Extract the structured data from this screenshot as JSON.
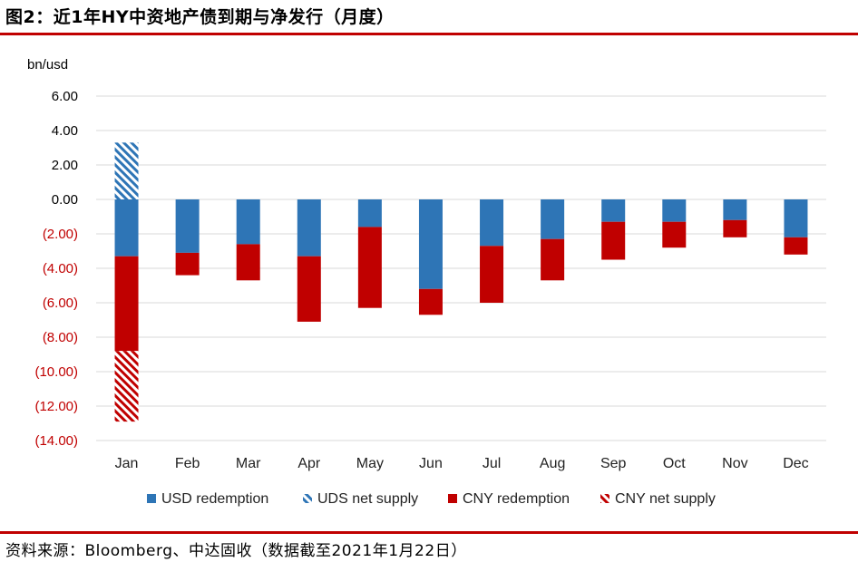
{
  "header": {
    "title": "图2：近1年HY中资地产债到期与净发行（月度）"
  },
  "footer": {
    "source": "资料来源：Bloomberg、中达固收（数据截至2021年1月22日）"
  },
  "colors": {
    "blue": "#2e75b6",
    "red": "#c00000",
    "accent_rule": "#c00000",
    "negative_tick": "#c00000"
  },
  "chart_data": {
    "type": "bar",
    "stacked": true,
    "unit_label": "bn/usd",
    "categories": [
      "Jan",
      "Feb",
      "Mar",
      "Apr",
      "May",
      "Jun",
      "Jul",
      "Aug",
      "Sep",
      "Oct",
      "Nov",
      "Dec"
    ],
    "series": [
      {
        "name": "USD redemption",
        "fill": "solid",
        "color": "#2e75b6",
        "values": [
          -3.3,
          -3.1,
          -2.6,
          -3.3,
          -1.6,
          -5.2,
          -2.7,
          -2.3,
          -1.3,
          -1.3,
          -1.2,
          -2.2
        ]
      },
      {
        "name": "UDS net supply",
        "fill": "hatch",
        "color": "#2e75b6",
        "values": [
          3.3,
          0,
          0,
          0,
          0,
          0,
          0,
          0,
          0,
          0,
          0,
          0
        ]
      },
      {
        "name": "CNY redemption",
        "fill": "solid",
        "color": "#c00000",
        "values": [
          -5.5,
          -1.3,
          -2.1,
          -3.8,
          -4.7,
          -1.5,
          -3.3,
          -2.4,
          -2.2,
          -1.5,
          -1.0,
          -1.0
        ]
      },
      {
        "name": "CNY net supply",
        "fill": "hatch",
        "color": "#c00000",
        "values": [
          -4.1,
          0,
          0,
          0,
          0,
          0,
          0,
          0,
          0,
          0,
          0,
          0
        ]
      }
    ],
    "y_ticks": [
      "6.00",
      "4.00",
      "2.00",
      "0.00",
      "(2.00)",
      "(4.00)",
      "(6.00)",
      "(8.00)",
      "(10.00)",
      "(12.00)",
      "(14.00)"
    ],
    "ylim": [
      -14,
      6
    ],
    "grid": true,
    "legend": "bottom"
  }
}
